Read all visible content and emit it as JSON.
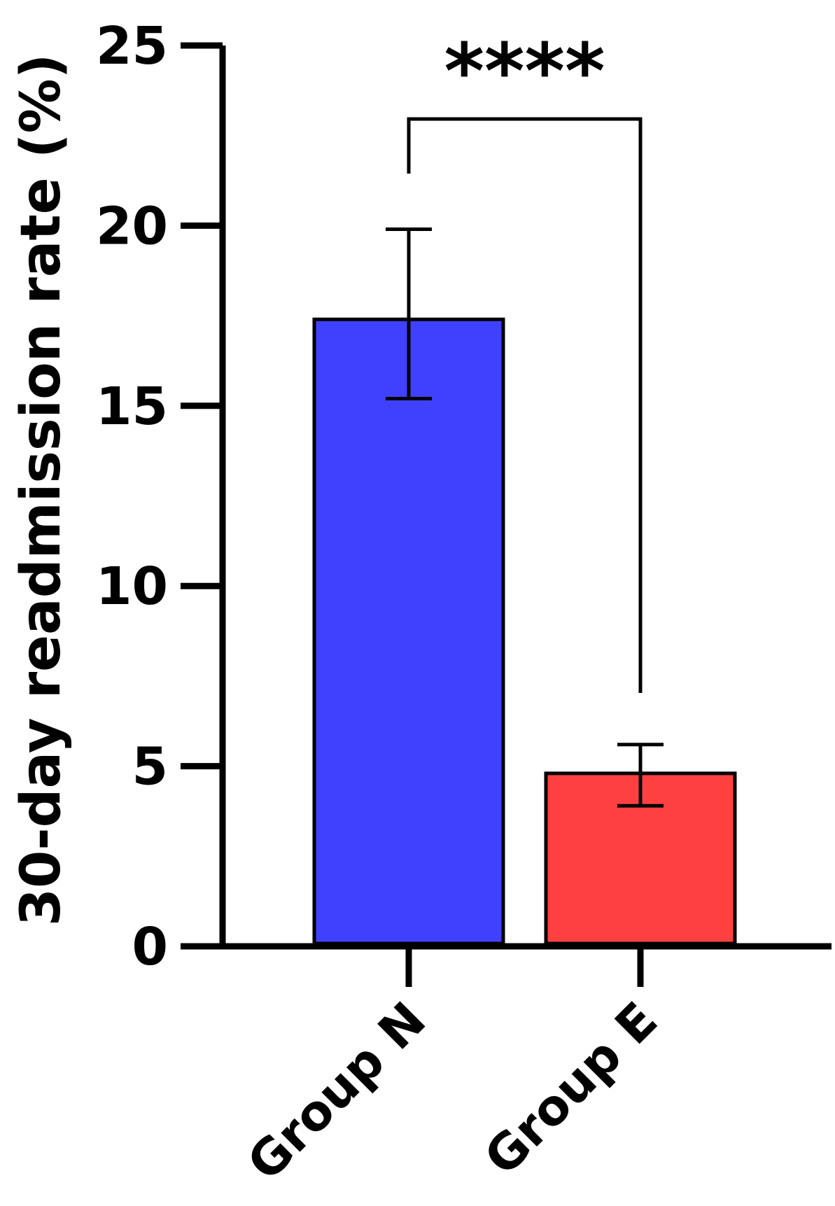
{
  "chart_data": {
    "type": "bar",
    "ylabel": "30-day readmission rate (%)",
    "xlabel": "",
    "ylim": [
      0,
      25
    ],
    "yticks": [
      "0",
      "5",
      "10",
      "15",
      "20",
      "25"
    ],
    "categories": [
      "Group N",
      "Group E"
    ],
    "values": [
      17.4,
      4.8
    ],
    "error_low": [
      15.2,
      3.9
    ],
    "error_high": [
      19.9,
      5.6
    ],
    "bar_colors": [
      "#4040ff",
      "#ff4040"
    ],
    "significance": {
      "between": [
        "Group N",
        "Group E"
      ],
      "label": "****"
    }
  }
}
